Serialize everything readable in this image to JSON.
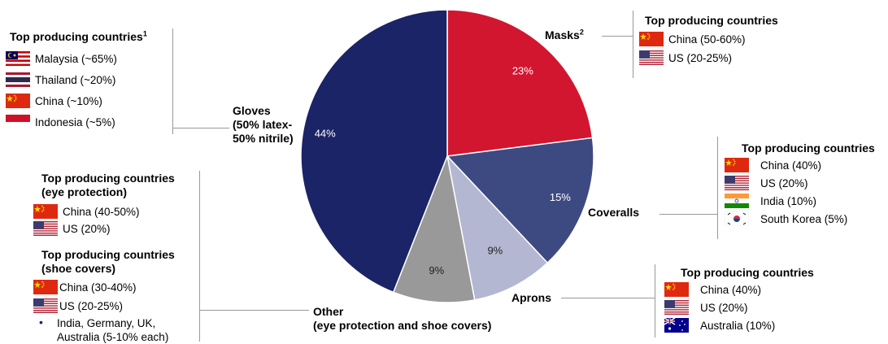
{
  "chart_data": {
    "type": "pie",
    "title": "",
    "slices": [
      {
        "label": "Masks",
        "value": 23,
        "value_label": "23%",
        "color": "#d2162f"
      },
      {
        "label": "Coveralls",
        "value": 15,
        "value_label": "15%",
        "color": "#3d4a82"
      },
      {
        "label": "Aprons",
        "value": 9,
        "value_label": "9%",
        "color": "#b3b7d1"
      },
      {
        "label": "Other (eye protection and shoe covers)",
        "value": 9,
        "value_label": "9%",
        "color": "#999999"
      },
      {
        "label": "Gloves (50% latex-50% nitrile)",
        "value": 44,
        "value_label": "44%",
        "color": "#1a2466"
      }
    ]
  },
  "labels": {
    "gloves": [
      "Gloves",
      "(50% latex-",
      "50% nitrile)"
    ],
    "masks": "Masks",
    "masks_sup": "2",
    "coveralls": "Coveralls",
    "aprons": "Aprons",
    "other": [
      "Other",
      "(eye protection and shoe covers)"
    ]
  },
  "panels": {
    "gloves": {
      "header": "Top producing countries",
      "header_sup": "1",
      "items": [
        {
          "flag": "malaysia-flag",
          "text": "Malaysia (~65%)"
        },
        {
          "flag": "thailand-flag",
          "text": "Thailand (~20%)"
        },
        {
          "flag": "china-flag",
          "text": "China (~10%)"
        },
        {
          "flag": "indonesia-flag",
          "text": "Indonesia (~5%)"
        }
      ]
    },
    "masks": {
      "header": "Top producing countries",
      "items": [
        {
          "flag": "china-flag",
          "text": "China (50-60%)"
        },
        {
          "flag": "us-flag",
          "text": "US (20-25%)"
        }
      ]
    },
    "coveralls": {
      "header": "Top producing countries",
      "items": [
        {
          "flag": "china-flag",
          "text": "China (40%)"
        },
        {
          "flag": "us-flag",
          "text": "US (20%)"
        },
        {
          "flag": "india-flag",
          "text": "India (10%)"
        },
        {
          "flag": "south-korea-flag",
          "text": "South Korea (5%)"
        }
      ]
    },
    "aprons": {
      "header": "Top producing countries",
      "items": [
        {
          "flag": "china-flag",
          "text": "China (40%)"
        },
        {
          "flag": "us-flag",
          "text": "US (20%)"
        },
        {
          "flag": "australia-flag",
          "text": "Australia (10%)"
        }
      ]
    },
    "eye": {
      "header": [
        "Top producing countries",
        "(eye protection)"
      ],
      "items": [
        {
          "flag": "china-flag",
          "text": "China (40-50%)"
        },
        {
          "flag": "us-flag",
          "text": "US (20%)"
        }
      ]
    },
    "shoe": {
      "header": [
        "Top producing countries",
        "(shoe covers)"
      ],
      "items": [
        {
          "flag": "china-flag",
          "text": "China (30-40%)"
        },
        {
          "flag": "us-flag",
          "text": "US (20-25%)"
        }
      ],
      "bullet": [
        "India, Germany, UK,",
        "Australia (5-10% each)"
      ]
    }
  }
}
